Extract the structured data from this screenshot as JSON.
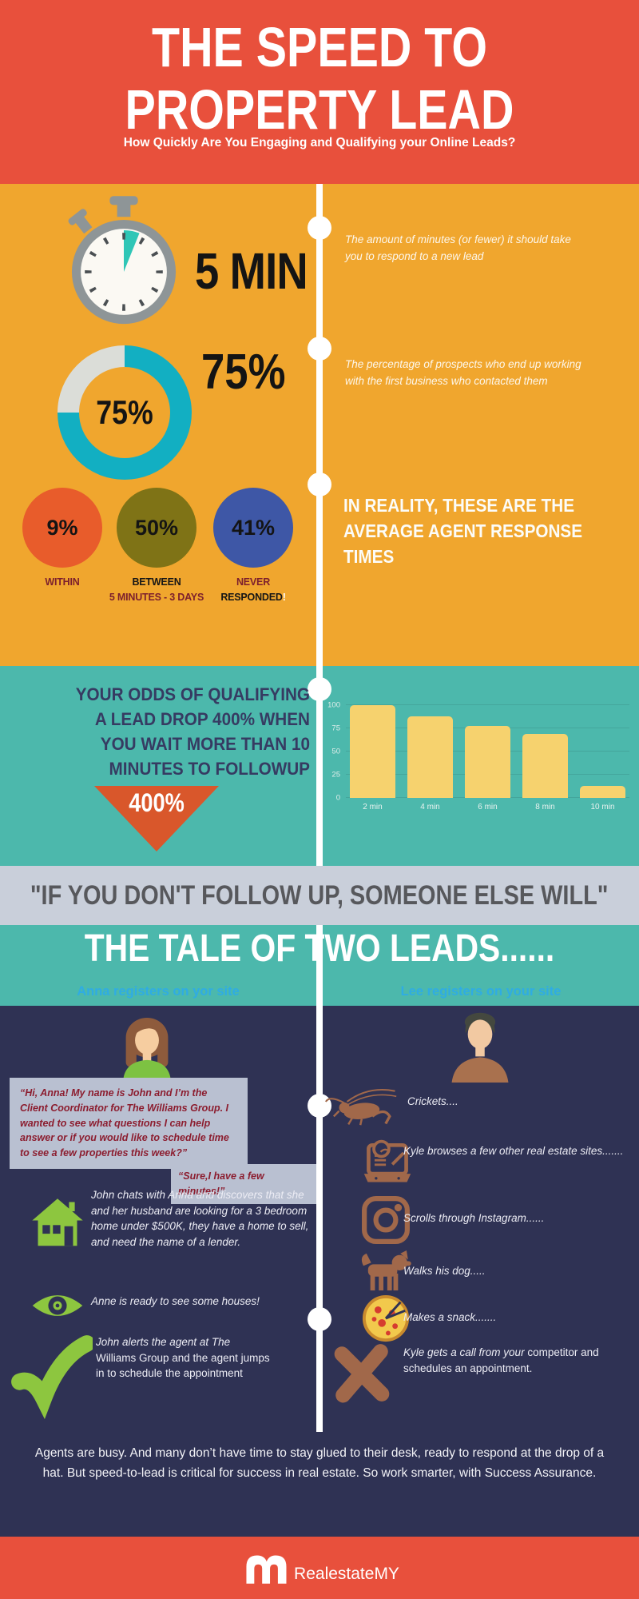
{
  "colors": {
    "red": "#E8503C",
    "orange": "#F0A62E",
    "teal": "#4CB8AC",
    "navy": "#2F3254",
    "quote_band": "#C9CFDA",
    "donut_teal": "#12AFC2",
    "bar_yellow": "#F6D26E",
    "triangle_orange": "#D9572B",
    "green_icon": "#8DC63F",
    "brown_icon": "#A1684A",
    "maroon_text": "#7C1F2D",
    "cyan_header": "#2FACE3",
    "bubble_bg": "#B9C0D1"
  },
  "header": {
    "title": "THE SPEED TO PROPERTY LEAD",
    "subtitle": "How Quickly Are You Engaging and Qualifying your Online Leads?"
  },
  "five_min": {
    "value": "5 MIN",
    "desc": "The amount of minutes (or fewer) it should take you to respond to a new lead"
  },
  "donut": {
    "value": "75%",
    "percent": 75,
    "desc": "The percentage of prospects who end up working with the first business who contacted them"
  },
  "reality": {
    "heading": "IN REALITY, THESE ARE THE AVERAGE AGENT RESPONSE TIMES",
    "circles": [
      {
        "value": "9%",
        "label1": "WITHIN",
        "label2": "",
        "bang": ""
      },
      {
        "value": "50%",
        "label1": "BETWEEN",
        "label2": "5 MINUTES - 3 DAYS",
        "bang": ""
      },
      {
        "value": "41%",
        "label1": "NEVER",
        "label2": "RESPONDED",
        "bang": "!"
      }
    ]
  },
  "odds": {
    "text": "YOUR ODDS OF QUALIFYING A LEAD DROP 400% WHEN YOU WAIT MORE THAN 10 MINUTES TO FOLLOWUP",
    "badge": "400%"
  },
  "chart_data": {
    "type": "bar",
    "title": "",
    "xlabel": "",
    "ylabel": "",
    "categories": [
      "2 min",
      "4 min",
      "6 min",
      "8 min",
      "10 min"
    ],
    "values": [
      100,
      88,
      78,
      69,
      13
    ],
    "ylim": [
      0,
      100
    ],
    "yticks": [
      0,
      25,
      50,
      75,
      100
    ],
    "bar_color": "#F6D26E",
    "grid": true,
    "legend": "none"
  },
  "quote": "\"IF YOU DON'T FOLLOW UP, SOMEONE ELSE WILL\"",
  "tale": {
    "title": "THE TALE OF TWO LEADS......",
    "anna": {
      "header": "Anna registers on yor site",
      "bubble1": "“Hi, Anna! My name is John and I’m the Client Coordinator for The Williams Group. I wanted to see what questions I can help answer or if you would like to schedule time to see a few properties this week?”",
      "bubble2": "“Sure,I have a few minutes!”",
      "items": [
        {
          "icon": "house-icon",
          "text": "John chats with Anna and discovers that she and her husband are looking for a 3 bedroom home under $500K, they have a home to sell, and need the name of a lender."
        },
        {
          "icon": "eye-icon",
          "text": "Anne is ready to see some houses!"
        },
        {
          "icon": "checkmark-icon",
          "text_italic": "John alerts the agent at The ",
          "text_rest": "Williams Group and the agent jumps in to schedule the appointment"
        }
      ]
    },
    "lee": {
      "header": "Lee registers on your site",
      "items": [
        {
          "icon": "cricket-icon",
          "text": "Crickets...."
        },
        {
          "icon": "laptop-icon",
          "text": "Kyle browses a few other real estate sites......."
        },
        {
          "icon": "instagram-icon",
          "text": "Scrolls through Instagram......"
        },
        {
          "icon": "dog-icon",
          "text": "Walks his dog....."
        },
        {
          "icon": "pizza-icon",
          "text": "Makes a snack......."
        },
        {
          "icon": "x-icon",
          "text_italic": "Kyle gets a call from your ",
          "text_rest": "competitor and schedules an appointment."
        }
      ]
    }
  },
  "closing_paragraph": "Agents are busy. And many don’t have time to stay glued to their desk, ready to respond at the drop of a hat. But speed-to-lead is critical for success in real estate. So work smarter, with Success Assurance.",
  "brand": {
    "name": "RealestateMY"
  }
}
